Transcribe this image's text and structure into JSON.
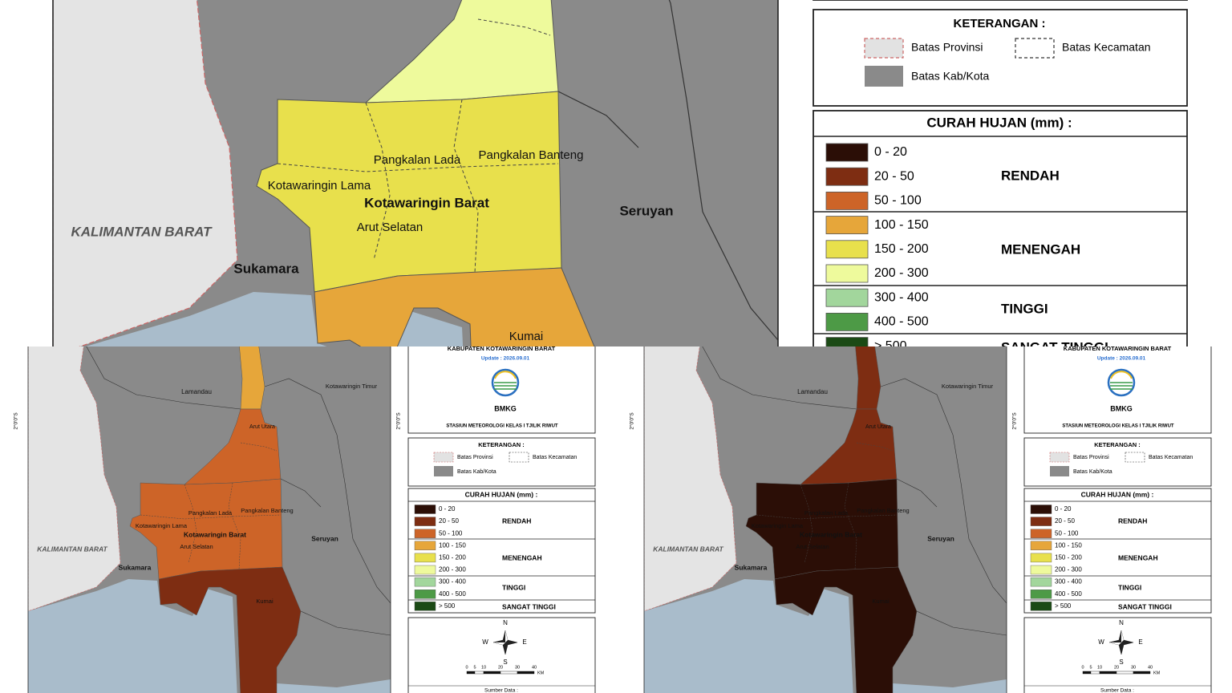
{
  "map": {
    "coord_label": "2°0'0\"S",
    "labels": {
      "lamandau": "Lamandau",
      "kotim": "Kotawaringin Timur",
      "arut_utara": "Arut Utara",
      "pangkalan_lada": "Pangkalan Lada",
      "pangkalan_banteng": "Pangkalan Banteng",
      "kotawaringin_lama": "Kotawaringin Lama",
      "kobar": "Kotawaringin Barat",
      "arut_selatan": "Arut Selatan",
      "kalbar": "KALIMANTAN BARAT",
      "sukamara": "Sukamara",
      "seruyan": "Seruyan",
      "kumai": "Kumai"
    }
  },
  "legend": {
    "title": "KABUPATEN KOTAWARINGIN BARAT",
    "update": "Update : 2026.09.01",
    "logo": "BMKG",
    "station": "STASIUN METEOROLOGI KELAS I TJILIK RIWUT",
    "keterangan": {
      "title": "KETERANGAN :",
      "provinsi": "Batas Provinsi",
      "kecamatan": "Batas Kecamatan",
      "kabkota": "Batas Kab/Kota"
    },
    "rainfall_title": "CURAH HUJAN (mm) :",
    "classes": [
      {
        "range": "0 - 20",
        "color": "#2b0e06"
      },
      {
        "range": "20 - 50",
        "color": "#7e2d12"
      },
      {
        "range": "50 - 100",
        "color": "#cd6428"
      },
      {
        "range": "100 - 150",
        "color": "#e6a63a"
      },
      {
        "range": "150  - 200",
        "color": "#e8e04c"
      },
      {
        "range": "200 - 300",
        "color": "#eefa9c"
      },
      {
        "range": "300 - 400",
        "color": "#a2d69c"
      },
      {
        "range": "400 - 500",
        "color": "#4d9a46"
      },
      {
        "range": "> 500",
        "color": "#1b4a15"
      }
    ],
    "groups": [
      "RENDAH",
      "MENENGAH",
      "TINGGI",
      "SANGAT TINGGI"
    ],
    "compass": {
      "n": "N",
      "s": "S",
      "w": "W",
      "e": "E"
    },
    "scale": [
      "0",
      "5",
      "10",
      "20",
      "30",
      "40"
    ],
    "scale_unit": "KM",
    "source": "Sumber Data :"
  },
  "panels": [
    {
      "zones": {
        "tip": 5,
        "north": 5,
        "middle": 4,
        "south": 3
      }
    },
    {
      "zones": {
        "tip": 3,
        "north": 2,
        "middle": 2,
        "south": 1
      }
    },
    {
      "zones": {
        "tip": 1,
        "north": 1,
        "middle": 0,
        "south": 0
      }
    }
  ]
}
